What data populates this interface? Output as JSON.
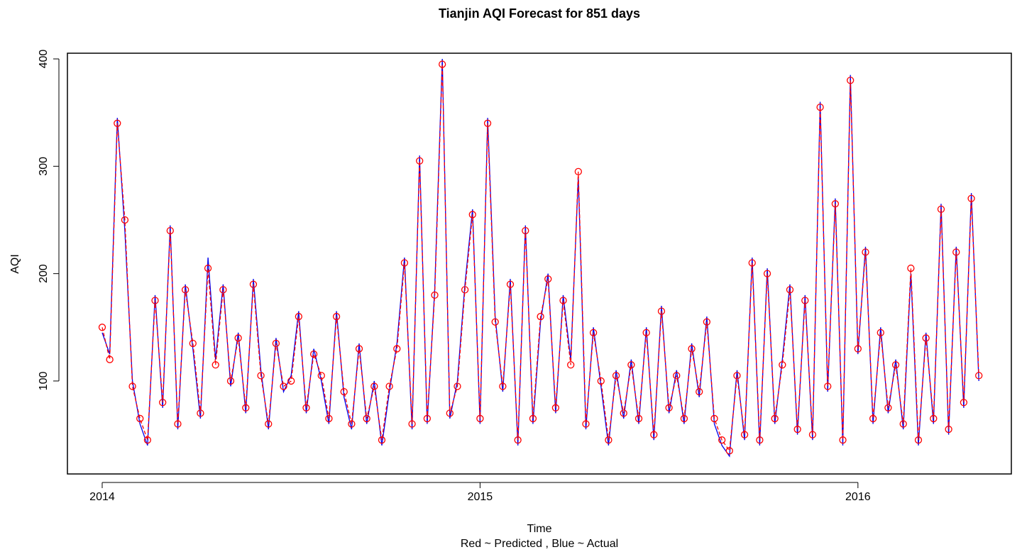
{
  "chart_data": {
    "type": "line",
    "title": "Tianjin AQI Forecast for 851 days",
    "xlabel": "Time",
    "x_sublabel": "Red ~ Predicted , Blue ~ Actual",
    "ylabel": "AQI",
    "x": [
      2014.0,
      2014.02,
      2014.04,
      2014.06,
      2014.08,
      2014.1,
      2014.12,
      2014.14,
      2014.16,
      2014.18,
      2014.2,
      2014.22,
      2014.24,
      2014.26,
      2014.28,
      2014.3,
      2014.32,
      2014.34,
      2014.36,
      2014.38,
      2014.4,
      2014.42,
      2014.44,
      2014.46,
      2014.48,
      2014.5,
      2014.52,
      2014.54,
      2014.56,
      2014.58,
      2014.6,
      2014.62,
      2014.64,
      2014.66,
      2014.68,
      2014.7,
      2014.72,
      2014.74,
      2014.76,
      2014.78,
      2014.8,
      2014.82,
      2014.84,
      2014.86,
      2014.88,
      2014.9,
      2014.92,
      2014.94,
      2014.96,
      2014.98,
      2015.0,
      2015.02,
      2015.04,
      2015.06,
      2015.08,
      2015.1,
      2015.12,
      2015.14,
      2015.16,
      2015.18,
      2015.2,
      2015.22,
      2015.24,
      2015.26,
      2015.28,
      2015.3,
      2015.32,
      2015.34,
      2015.36,
      2015.38,
      2015.4,
      2015.42,
      2015.44,
      2015.46,
      2015.48,
      2015.5,
      2015.52,
      2015.54,
      2015.56,
      2015.58,
      2015.6,
      2015.62,
      2015.64,
      2015.66,
      2015.68,
      2015.7,
      2015.72,
      2015.74,
      2015.76,
      2015.78,
      2015.8,
      2015.82,
      2015.84,
      2015.86,
      2015.88,
      2015.9,
      2015.92,
      2015.94,
      2015.96,
      2015.98,
      2016.0,
      2016.02,
      2016.04,
      2016.06,
      2016.08,
      2016.1,
      2016.12,
      2016.14,
      2016.16,
      2016.18,
      2016.2,
      2016.22,
      2016.24,
      2016.26,
      2016.28,
      2016.3,
      2016.32
    ],
    "series": [
      {
        "color": "#0000ee",
        "style": "solid",
        "markers": false,
        "values": [
          145,
          125,
          345,
          240,
          100,
          60,
          40,
          180,
          75,
          245,
          55,
          190,
          130,
          65,
          215,
          120,
          190,
          95,
          145,
          70,
          195,
          110,
          55,
          140,
          90,
          105,
          165,
          70,
          130,
          100,
          60,
          165,
          85,
          55,
          135,
          60,
          100,
          40,
          90,
          135,
          215,
          55,
          310,
          60,
          185,
          400,
          65,
          100,
          190,
          260,
          60,
          345,
          160,
          90,
          195,
          40,
          245,
          60,
          155,
          200,
          70,
          180,
          120,
          290,
          55,
          150,
          95,
          40,
          110,
          65,
          120,
          60,
          150,
          45,
          170,
          70,
          110,
          60,
          135,
          85,
          160,
          60,
          40,
          30,
          110,
          45,
          215,
          40,
          205,
          60,
          120,
          190,
          50,
          180,
          45,
          360,
          90,
          270,
          40,
          385,
          125,
          225,
          60,
          150,
          70,
          120,
          55,
          200,
          40,
          145,
          60,
          265,
          50,
          225,
          75,
          275,
          100
        ]
      },
      {
        "color": "#ff0000",
        "style": "dashed",
        "markers": true,
        "values": [
          150,
          120,
          340,
          250,
          95,
          65,
          45,
          175,
          80,
          240,
          60,
          185,
          135,
          70,
          205,
          115,
          185,
          100,
          140,
          75,
          190,
          105,
          60,
          135,
          95,
          100,
          160,
          75,
          125,
          105,
          65,
          160,
          90,
          60,
          130,
          65,
          95,
          45,
          95,
          130,
          210,
          60,
          305,
          65,
          180,
          395,
          70,
          95,
          185,
          255,
          65,
          340,
          155,
          95,
          190,
          45,
          240,
          65,
          160,
          195,
          75,
          175,
          115,
          295,
          60,
          145,
          100,
          45,
          105,
          70,
          115,
          65,
          145,
          50,
          165,
          75,
          105,
          65,
          130,
          90,
          155,
          65,
          45,
          35,
          105,
          50,
          210,
          45,
          200,
          65,
          115,
          185,
          55,
          175,
          50,
          355,
          95,
          265,
          45,
          380,
          130,
          220,
          65,
          145,
          75,
          115,
          60,
          205,
          45,
          140,
          65,
          260,
          55,
          220,
          80,
          270,
          105
        ]
      }
    ],
    "xlim": [
      2013.908,
      2016.406
    ],
    "ylim": [
      13.4,
      405.3
    ],
    "xticks": [
      2014,
      2015,
      2016
    ],
    "yticks": [
      100,
      200,
      300,
      400
    ],
    "grid": false
  }
}
